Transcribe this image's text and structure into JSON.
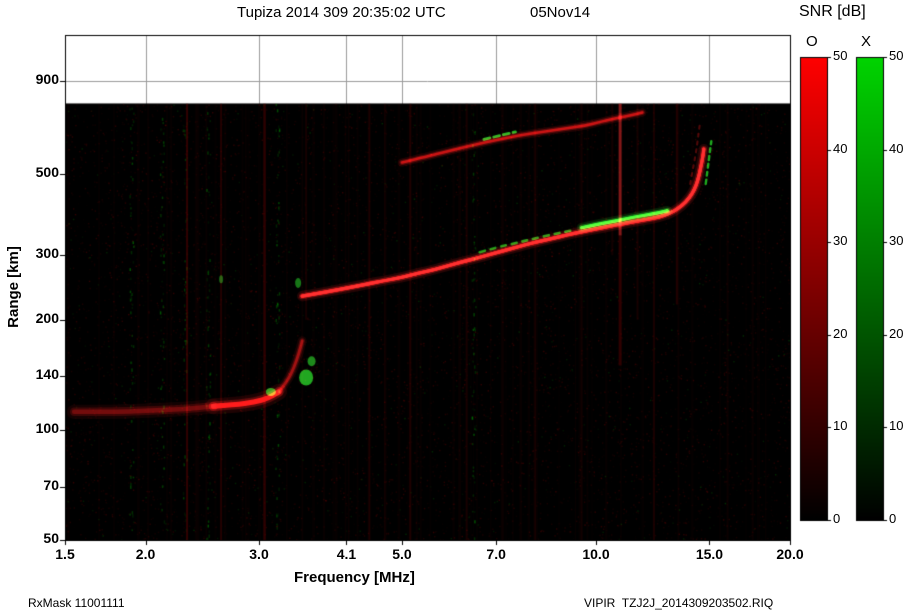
{
  "header": {
    "title": "Tupiza 2014 309 20:35:02 UTC",
    "date": "05Nov14"
  },
  "footer": {
    "rx_mask": "RxMask 11001111",
    "file_label": "VIPIR  TZJ2J_2014309203502.RIQ"
  },
  "chart_data": {
    "type": "heatmap",
    "title": "Tupiza 2014 309 20:35:02 UTC",
    "subtitle": "05Nov14",
    "xlabel": "Frequency [MHz]",
    "ylabel": "Range [km]",
    "x_scale": "log",
    "y_scale": "log",
    "x_range": [
      1.5,
      20.0
    ],
    "y_range": [
      50,
      1200
    ],
    "data_top_km": 780,
    "x_ticks": [
      1.5,
      2.0,
      3.0,
      4.1,
      5.0,
      7.0,
      10.0,
      15.0,
      20.0
    ],
    "x_tick_labels": [
      "1.5",
      "2.0",
      "3.0",
      "4.1",
      "5.0",
      "7.0",
      "10.0",
      "15.0",
      "20.0"
    ],
    "y_ticks": [
      900,
      500,
      300,
      200,
      140,
      100,
      70,
      50
    ],
    "y_tick_labels": [
      "900",
      "500",
      "300",
      "200",
      "140",
      "100",
      "70",
      "50"
    ],
    "grid": true,
    "background": "#000000",
    "colorbar": {
      "title": "SNR [dB]",
      "min": 0,
      "max": 50,
      "tick_labels": [
        "0",
        "10",
        "20",
        "30",
        "40",
        "50"
      ],
      "bars": [
        {
          "label": "O",
          "color_top": "#ff0000",
          "color_bottom": "#000000"
        },
        {
          "label": "X",
          "color_top": "#00d400",
          "color_bottom": "#000000"
        }
      ]
    },
    "traces": [
      {
        "name": "F-layer O-mode",
        "mode": "O",
        "color": "#ff2222",
        "width": 3.2,
        "alpha": 1,
        "glow": true,
        "dash": null,
        "points": [
          [
            3.5,
            232
          ],
          [
            3.7,
            236
          ],
          [
            3.9,
            240
          ],
          [
            4.15,
            245
          ],
          [
            4.4,
            250
          ],
          [
            4.7,
            256
          ],
          [
            5.0,
            261
          ],
          [
            5.3,
            268
          ],
          [
            5.6,
            274
          ],
          [
            5.9,
            281
          ],
          [
            6.2,
            288
          ],
          [
            6.6,
            296
          ],
          [
            7.0,
            305
          ],
          [
            7.4,
            313
          ],
          [
            7.8,
            321
          ],
          [
            8.2,
            328
          ],
          [
            8.6,
            334
          ],
          [
            9.0,
            341
          ],
          [
            9.5,
            348
          ],
          [
            10.0,
            354
          ],
          [
            10.5,
            360
          ],
          [
            11.0,
            366
          ],
          [
            11.5,
            371
          ],
          [
            12.0,
            376
          ],
          [
            12.5,
            381
          ],
          [
            13.0,
            390
          ],
          [
            13.4,
            402
          ],
          [
            13.8,
            420
          ],
          [
            14.1,
            442
          ],
          [
            14.3,
            465
          ],
          [
            14.45,
            495
          ],
          [
            14.55,
            525
          ],
          [
            14.65,
            558
          ],
          [
            14.7,
            585
          ]
        ]
      },
      {
        "name": "F-layer X-mode sparse",
        "mode": "X",
        "color": "#1ecc1e",
        "width": 2.6,
        "alpha": 0.75,
        "glow": false,
        "dash": [
          5,
          6
        ],
        "points": [
          [
            6.6,
            306
          ],
          [
            7.0,
            315
          ],
          [
            7.5,
            324
          ],
          [
            8.0,
            333
          ],
          [
            8.6,
            343
          ],
          [
            9.2,
            351
          ]
        ]
      },
      {
        "name": "F-layer X-mode bright",
        "mode": "X",
        "color": "#2ae02a",
        "width": 3,
        "alpha": 0.95,
        "glow": true,
        "dash": null,
        "points": [
          [
            9.5,
            357
          ],
          [
            10.0,
            364
          ],
          [
            10.5,
            370
          ],
          [
            11.0,
            376
          ],
          [
            11.5,
            382
          ],
          [
            12.0,
            387
          ],
          [
            12.5,
            392
          ],
          [
            12.9,
            397
          ]
        ]
      },
      {
        "name": "F-layer X-mode cusp",
        "mode": "X",
        "color": "#25d425",
        "width": 2.4,
        "alpha": 0.8,
        "glow": false,
        "dash": [
          4,
          4
        ],
        "points": [
          [
            14.8,
            470
          ],
          [
            14.9,
            515
          ],
          [
            15.0,
            565
          ],
          [
            15.1,
            615
          ]
        ]
      },
      {
        "name": "second-hop O-mode",
        "mode": "O",
        "color": "#cc1414",
        "width": 2.6,
        "alpha": 0.55,
        "glow": true,
        "dash": null,
        "points": [
          [
            5.0,
            538
          ],
          [
            5.5,
            560
          ],
          [
            6.0,
            582
          ],
          [
            6.5,
            602
          ],
          [
            7.0,
            620
          ],
          [
            7.6,
            638
          ],
          [
            8.2,
            651
          ],
          [
            9.0,
            667
          ],
          [
            9.6,
            678
          ],
          [
            10.2,
            696
          ],
          [
            10.8,
            712
          ],
          [
            11.4,
            726
          ],
          [
            11.8,
            737
          ]
        ]
      },
      {
        "name": "second-hop X-mode",
        "mode": "X",
        "color": "#2ad42a",
        "width": 2.8,
        "alpha": 0.85,
        "glow": false,
        "dash": [
          6,
          4
        ],
        "points": [
          [
            6.7,
            622
          ],
          [
            7.1,
            638
          ],
          [
            7.5,
            652
          ]
        ]
      },
      {
        "name": "second-hop cusp",
        "mode": "O",
        "color": "#bb1111",
        "width": 2,
        "alpha": 0.45,
        "glow": false,
        "dash": [
          3,
          5
        ],
        "points": [
          [
            14.0,
            470
          ],
          [
            14.15,
            520
          ],
          [
            14.3,
            575
          ],
          [
            14.4,
            630
          ],
          [
            14.5,
            690
          ]
        ]
      },
      {
        "name": "E-layer O-mode weak",
        "mode": "O",
        "color": "#8a0e0e",
        "width": 4.5,
        "alpha": 0.4,
        "glow": true,
        "dash": null,
        "points": [
          [
            1.55,
            112
          ],
          [
            1.8,
            112
          ],
          [
            2.05,
            113
          ],
          [
            2.3,
            114
          ],
          [
            2.55,
            116
          ]
        ]
      },
      {
        "name": "E-layer O-mode bright",
        "mode": "O",
        "color": "#d01616",
        "width": 5,
        "alpha": 0.8,
        "glow": true,
        "dash": null,
        "points": [
          [
            2.55,
            116
          ],
          [
            2.75,
            117
          ],
          [
            2.95,
            119
          ],
          [
            3.1,
            122
          ],
          [
            3.22,
            127
          ]
        ]
      },
      {
        "name": "E-layer retardation",
        "mode": "O",
        "color": "#a31212",
        "width": 2.8,
        "alpha": 0.55,
        "glow": true,
        "dash": null,
        "points": [
          [
            3.22,
            127
          ],
          [
            3.32,
            136
          ],
          [
            3.4,
            148
          ],
          [
            3.46,
            162
          ],
          [
            3.5,
            175
          ]
        ]
      }
    ],
    "green_patches": [
      {
        "f": 3.13,
        "r": 127,
        "rx": 5,
        "ry": 4,
        "alpha": 0.8
      },
      {
        "f": 3.55,
        "r": 139,
        "rx": 7,
        "ry": 8,
        "alpha": 0.85
      },
      {
        "f": 3.62,
        "r": 154,
        "rx": 4,
        "ry": 5,
        "alpha": 0.7
      },
      {
        "f": 3.45,
        "r": 252,
        "rx": 3,
        "ry": 5,
        "alpha": 0.6
      },
      {
        "f": 2.62,
        "r": 258,
        "rx": 2,
        "ry": 4,
        "alpha": 0.5
      }
    ],
    "rfi_streaks": [
      {
        "f": 2.32,
        "k1": 50,
        "k2": 780,
        "color": "#600000",
        "alpha": 0.5,
        "w": 2
      },
      {
        "f": 2.62,
        "k1": 50,
        "k2": 780,
        "color": "#500000",
        "alpha": 0.45,
        "w": 2
      },
      {
        "f": 3.06,
        "k1": 50,
        "k2": 780,
        "color": "#5a0000",
        "alpha": 0.5,
        "w": 2.5
      },
      {
        "f": 3.55,
        "k1": 200,
        "k2": 780,
        "color": "#400000",
        "alpha": 0.35,
        "w": 2
      },
      {
        "f": 4.45,
        "k1": 50,
        "k2": 780,
        "color": "#480000",
        "alpha": 0.35,
        "w": 2
      },
      {
        "f": 5.15,
        "k1": 50,
        "k2": 780,
        "color": "#4e0000",
        "alpha": 0.4,
        "w": 2
      },
      {
        "f": 6.3,
        "k1": 50,
        "k2": 780,
        "color": "#420000",
        "alpha": 0.35,
        "w": 2
      },
      {
        "f": 8.05,
        "k1": 50,
        "k2": 780,
        "color": "#450000",
        "alpha": 0.3,
        "w": 2
      },
      {
        "f": 9.5,
        "k1": 50,
        "k2": 780,
        "color": "#3a0000",
        "alpha": 0.3,
        "w": 2
      },
      {
        "f": 10.6,
        "k1": 300,
        "k2": 780,
        "color": "#400000",
        "alpha": 0.3,
        "w": 2
      },
      {
        "f": 10.9,
        "k1": 340,
        "k2": 780,
        "color": "#ff3030",
        "alpha": 0.5,
        "w": 3
      },
      {
        "f": 10.9,
        "k1": 150,
        "k2": 340,
        "color": "#700000",
        "alpha": 0.4,
        "w": 3
      },
      {
        "f": 11.6,
        "k1": 200,
        "k2": 780,
        "color": "#4a0000",
        "alpha": 0.3,
        "w": 2
      },
      {
        "f": 12.3,
        "k1": 50,
        "k2": 780,
        "color": "#4a0000",
        "alpha": 0.35,
        "w": 2
      },
      {
        "f": 13.35,
        "k1": 220,
        "k2": 780,
        "color": "#520000",
        "alpha": 0.4,
        "w": 2
      },
      {
        "f": 16.0,
        "k1": 50,
        "k2": 780,
        "color": "#300000",
        "alpha": 0.25,
        "w": 2
      },
      {
        "f": 17.5,
        "k1": 50,
        "k2": 780,
        "color": "#300000",
        "alpha": 0.2,
        "w": 2
      }
    ],
    "green_speckle_columns": [
      1.9,
      2.12,
      2.3,
      2.5,
      3.2,
      6.45
    ],
    "noise": {
      "red_dots": 9000,
      "green_dots": 750,
      "texture_columns": 70
    }
  }
}
